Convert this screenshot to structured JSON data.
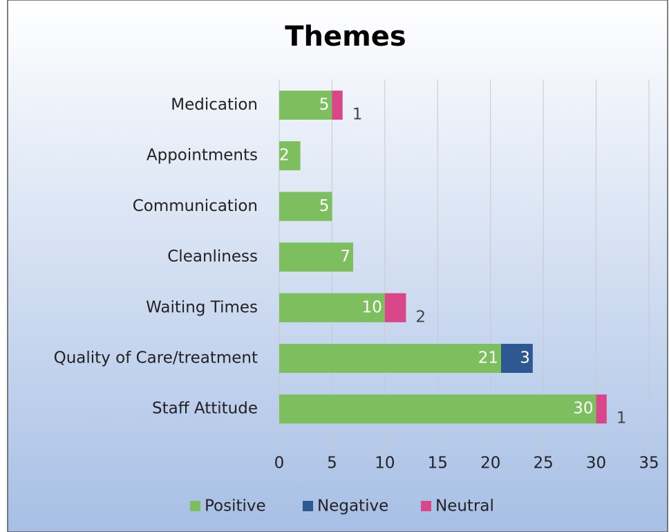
{
  "chart_data": {
    "type": "bar",
    "orientation": "horizontal",
    "stacked": true,
    "title": "Themes",
    "categories": [
      "Medication",
      "Appointments",
      "Communication",
      "Cleanliness",
      "Waiting Times",
      "Quality of Care/treatment",
      "Staff Attitude"
    ],
    "series": [
      {
        "name": "Positive",
        "color": "#7dbf5f",
        "values": [
          5,
          2,
          5,
          7,
          10,
          21,
          30
        ]
      },
      {
        "name": "Negative",
        "color": "#2e5891",
        "values": [
          null,
          null,
          null,
          null,
          null,
          3,
          null
        ]
      },
      {
        "name": "Neutral",
        "color": "#d9478a",
        "values": [
          1,
          null,
          null,
          null,
          2,
          null,
          1
        ]
      }
    ],
    "xlim": [
      0,
      35
    ],
    "xticks": [
      0,
      5,
      10,
      15,
      20,
      25,
      30,
      35
    ],
    "grid": true,
    "legend": "bottom"
  }
}
